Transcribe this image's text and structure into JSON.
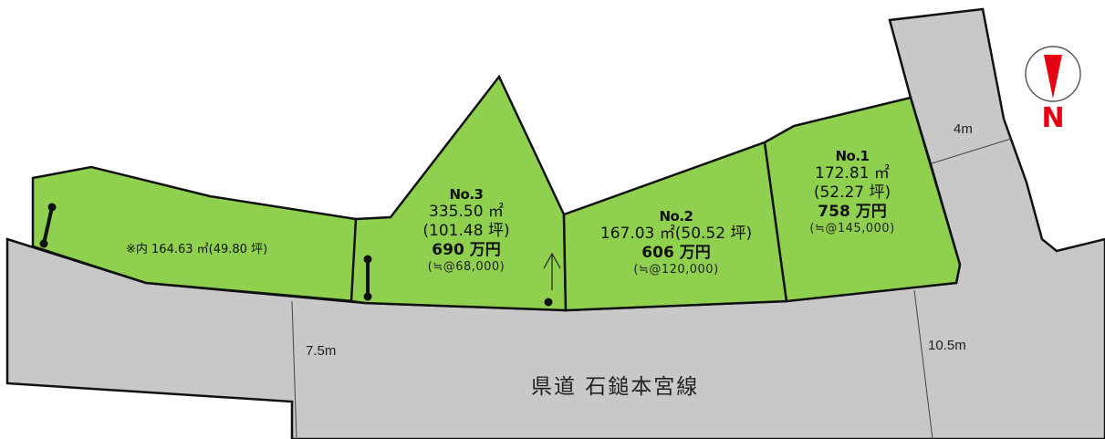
{
  "map": {
    "compass": {
      "letter": "N",
      "color": "#e60012"
    },
    "colors": {
      "lot": "#8fd14f",
      "road": "#c8c8c8",
      "border": "#111111"
    },
    "lot3_extra": {
      "label": "※内 164.63 ㎡(49.80 坪)"
    },
    "lots": [
      {
        "no": "No.3",
        "area": "335.50 ㎡",
        "tsubo": "(101.48 坪)",
        "price": "690 万円",
        "unit_price": "(≒@68,000)"
      },
      {
        "no": "No.2",
        "area": "167.03 ㎡(50.52 坪)",
        "price": "606 万円",
        "unit_price": "(≒@120,000)"
      },
      {
        "no": "No.1",
        "area": "172.81 ㎡",
        "tsubo": "(52.27 坪)",
        "price": "758 万円",
        "unit_price": "(≒@145,000)"
      }
    ],
    "roads": {
      "main_name": "県道 石鎚本宮線",
      "width_west": "7.5m",
      "width_east": "10.5m",
      "width_side": "4m"
    }
  }
}
